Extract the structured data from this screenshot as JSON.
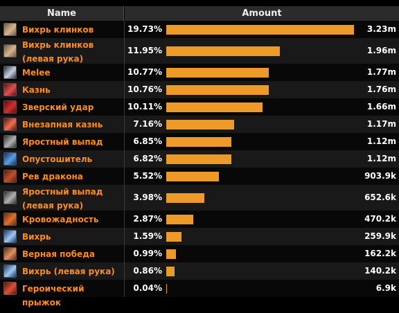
{
  "headers": {
    "name": "Name",
    "amount": "Amount"
  },
  "rows": [
    {
      "name": "Вихрь клинков",
      "pct": "19.73%",
      "amount": "3.23m",
      "fraction": 19.73,
      "icon": "blade-flurry-icon",
      "c1": "#6b5a4a",
      "c2": "#d9b38c"
    },
    {
      "name": "Вихрь клинков (левая рука)",
      "pct": "11.95%",
      "amount": "1.96m",
      "fraction": 11.95,
      "icon": "blade-flurry-icon",
      "c1": "#6b5a4a",
      "c2": "#d9b38c"
    },
    {
      "name": "Melee",
      "pct": "10.77%",
      "amount": "1.77m",
      "fraction": 10.77,
      "icon": "sword-icon",
      "c1": "#2a3140",
      "c2": "#c8d0e0"
    },
    {
      "name": "Казнь",
      "pct": "10.76%",
      "amount": "1.76m",
      "fraction": 10.76,
      "icon": "execute-icon",
      "c1": "#5a1010",
      "c2": "#e05050"
    },
    {
      "name": "Зверский удар",
      "pct": "10.11%",
      "amount": "1.66m",
      "fraction": 10.11,
      "icon": "mortal-strike-icon",
      "c1": "#600a0a",
      "c2": "#d03030"
    },
    {
      "name": "Внезапная казнь",
      "pct": "7.16%",
      "amount": "1.17m",
      "fraction": 7.16,
      "icon": "sudden-death-icon",
      "c1": "#5a1010",
      "c2": "#f07050"
    },
    {
      "name": "Яростный выпад",
      "pct": "6.85%",
      "amount": "1.12m",
      "fraction": 6.85,
      "icon": "raging-blow-icon",
      "c1": "#303030",
      "c2": "#b0b0b0"
    },
    {
      "name": "Опустошитель",
      "pct": "6.82%",
      "amount": "1.12m",
      "fraction": 6.82,
      "icon": "ravager-icon",
      "c1": "#10306a",
      "c2": "#5aa0e0"
    },
    {
      "name": "Рев дракона",
      "pct": "5.52%",
      "amount": "903.9k",
      "fraction": 5.52,
      "icon": "dragon-roar-icon",
      "c1": "#5a1a0a",
      "c2": "#c0502a"
    },
    {
      "name": "Яростный выпад (левая рука)",
      "pct": "3.98%",
      "amount": "652.6k",
      "fraction": 3.98,
      "icon": "raging-blow-icon",
      "c1": "#303030",
      "c2": "#b0b0b0"
    },
    {
      "name": "Кровожадность",
      "pct": "2.87%",
      "amount": "470.2k",
      "fraction": 2.87,
      "icon": "bloodthirst-icon",
      "c1": "#6a2a0a",
      "c2": "#e07030"
    },
    {
      "name": "Вихрь",
      "pct": "1.59%",
      "amount": "259.9k",
      "fraction": 1.59,
      "icon": "whirlwind-icon",
      "c1": "#1a3a6a",
      "c2": "#a0c8f0"
    },
    {
      "name": "Верная победа",
      "pct": "0.99%",
      "amount": "162.2k",
      "fraction": 0.99,
      "icon": "victory-rush-icon",
      "c1": "#5a2a1a",
      "c2": "#e09060"
    },
    {
      "name": "Вихрь (левая рука)",
      "pct": "0.86%",
      "amount": "140.2k",
      "fraction": 0.86,
      "icon": "whirlwind-icon",
      "c1": "#1a3a6a",
      "c2": "#a0c8f0"
    },
    {
      "name": "Героический прыжок",
      "pct": "0.04%",
      "amount": "6.9k",
      "fraction": 0.04,
      "icon": "heroic-leap-icon",
      "c1": "#5a1010",
      "c2": "#e05030"
    }
  ]
}
